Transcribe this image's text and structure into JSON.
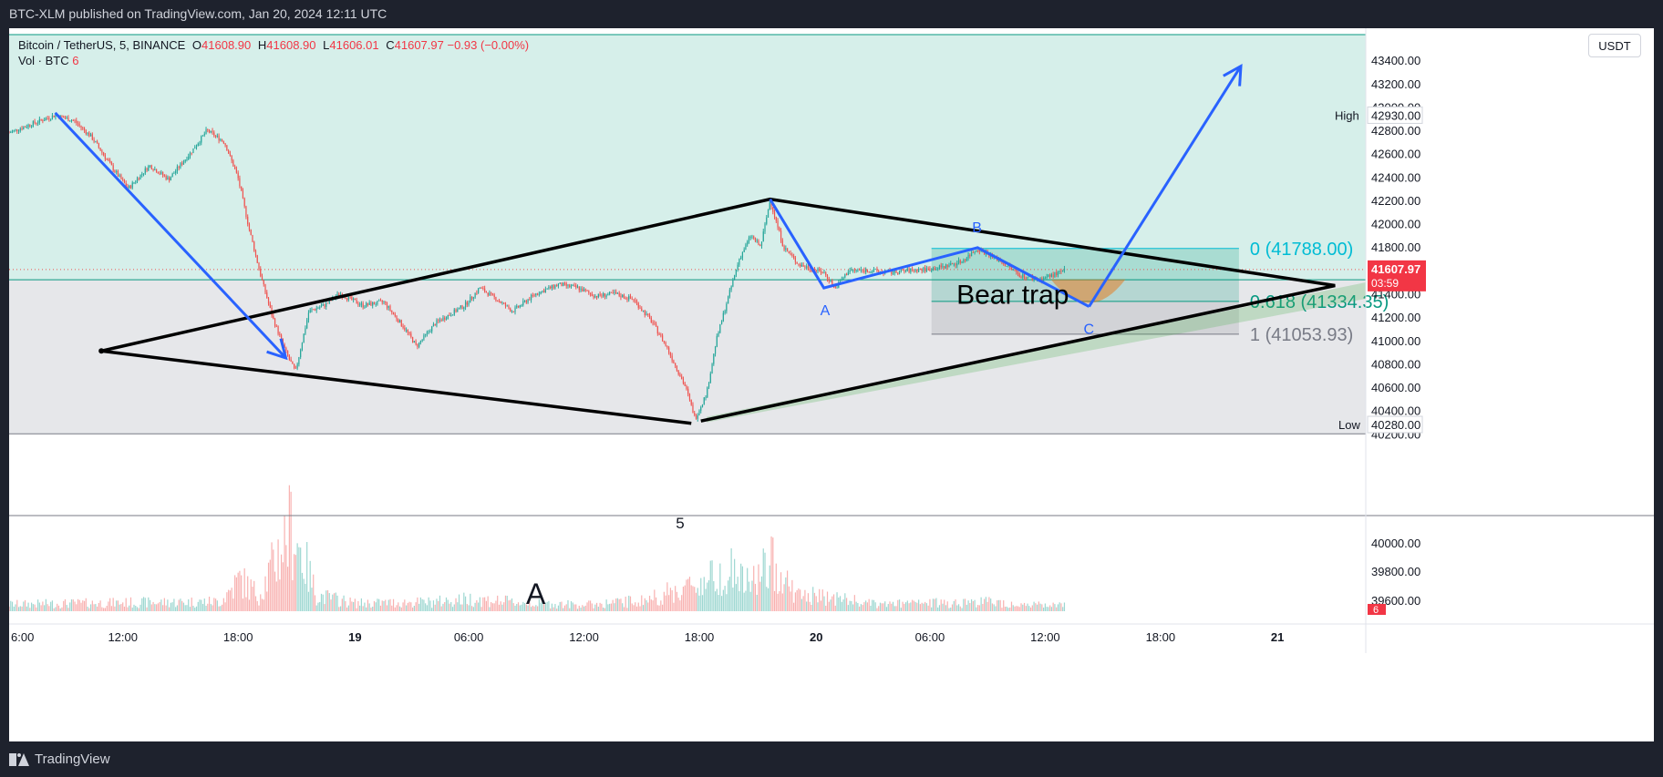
{
  "header": {
    "text": "BTC-XLM published on TradingView.com, Jan 20, 2024 12:11 UTC"
  },
  "legend": {
    "symbol": "Bitcoin / TetherUS, 5, BINANCE",
    "o_label": "O",
    "o": "41608.90",
    "h_label": "H",
    "h": "41608.90",
    "l_label": "L",
    "l": "41606.01",
    "c_label": "C",
    "c": "41607.97",
    "change": "−0.93 (−0.00%)",
    "vol_label": "Vol · BTC",
    "vol": "6"
  },
  "currency": "USDT",
  "footer": {
    "brand": "TradingView"
  },
  "colors": {
    "up": "#26a69a",
    "down": "#ef5350",
    "upper_zone": "#d6efea",
    "lower_zone": "#e6e7ea",
    "pattern": "#000000",
    "arrow": "#2962ff",
    "fib_zero": "#00bcd4",
    "fib_618": "#089981",
    "fib_one": "#787b86",
    "price_tag": "#f23645"
  },
  "chart_data": {
    "type": "candlestick",
    "title": "Bitcoin / TetherUS, 5, BINANCE",
    "interval": "5",
    "ylim": [
      39500,
      43620
    ],
    "volume_ylim": [
      0,
      18
    ],
    "y_ticks": [
      43400,
      43200,
      43000,
      42800,
      42600,
      42400,
      42200,
      42000,
      41800,
      41400,
      41200,
      41000,
      40800,
      40600,
      40400,
      40200,
      40000,
      39800
    ],
    "x_tick_labels": [
      "6:00",
      "12:00",
      "18:00",
      "19",
      "06:00",
      "12:00",
      "18:00",
      "20",
      "06:00",
      "12:00",
      "18:00",
      "21"
    ],
    "x_ticks_hours": [
      6,
      12,
      18,
      24,
      30,
      36,
      42,
      48,
      54,
      60,
      66,
      72
    ],
    "xlim_hours": [
      6,
      76.6
    ],
    "last_price": "41607.97",
    "countdown": "03:59",
    "high": {
      "label": "High",
      "value": "42930.00"
    },
    "low": {
      "label": "Low",
      "value": "40280.00"
    },
    "volume_last": "6",
    "volume_axis_label": "39600.00",
    "path_points": [
      [
        6.0,
        42780
      ],
      [
        7.1,
        42850
      ],
      [
        8.4,
        42930
      ],
      [
        9.4,
        42880
      ],
      [
        10.3,
        42740
      ],
      [
        11.5,
        42450
      ],
      [
        12.2,
        42300
      ],
      [
        13.3,
        42500
      ],
      [
        14.3,
        42380
      ],
      [
        15.5,
        42620
      ],
      [
        16.3,
        42800
      ],
      [
        17.2,
        42700
      ],
      [
        17.9,
        42400
      ],
      [
        18.5,
        41950
      ],
      [
        19.1,
        41550
      ],
      [
        19.7,
        41200
      ],
      [
        20.4,
        40900
      ],
      [
        20.9,
        40730
      ],
      [
        21.6,
        41250
      ],
      [
        22.4,
        41300
      ],
      [
        23.2,
        41400
      ],
      [
        24.4,
        41300
      ],
      [
        25.5,
        41330
      ],
      [
        26.6,
        41100
      ],
      [
        27.2,
        40950
      ],
      [
        28.2,
        41150
      ],
      [
        29.7,
        41300
      ],
      [
        30.5,
        41450
      ],
      [
        31.4,
        41350
      ],
      [
        32.2,
        41250
      ],
      [
        33.4,
        41400
      ],
      [
        34.6,
        41480
      ],
      [
        35.6,
        41450
      ],
      [
        36.5,
        41380
      ],
      [
        37.5,
        41400
      ],
      [
        38.5,
        41350
      ],
      [
        39.5,
        41150
      ],
      [
        40.2,
        40950
      ],
      [
        41.2,
        40600
      ],
      [
        41.7,
        40330
      ],
      [
        42.3,
        40550
      ],
      [
        42.8,
        41000
      ],
      [
        43.3,
        41300
      ],
      [
        44.0,
        41700
      ],
      [
        44.6,
        41900
      ],
      [
        45.1,
        41800
      ],
      [
        45.6,
        42200
      ],
      [
        46.3,
        41800
      ],
      [
        47.1,
        41650
      ],
      [
        48.4,
        41580
      ],
      [
        49.0,
        41450
      ],
      [
        49.7,
        41600
      ],
      [
        50.8,
        41600
      ],
      [
        51.8,
        41580
      ],
      [
        52.8,
        41600
      ],
      [
        53.8,
        41610
      ],
      [
        54.6,
        41630
      ],
      [
        55.6,
        41680
      ],
      [
        56.4,
        41790
      ],
      [
        57.6,
        41680
      ],
      [
        58.6,
        41560
      ],
      [
        59.6,
        41520
      ],
      [
        60.3,
        41560
      ],
      [
        61.0,
        41600
      ]
    ],
    "volume_profile": [
      [
        6,
        1.3
      ],
      [
        12,
        1.6
      ],
      [
        17,
        1.8
      ],
      [
        18,
        6
      ],
      [
        19,
        3
      ],
      [
        20.7,
        16
      ],
      [
        22,
        3
      ],
      [
        24,
        1.5
      ],
      [
        28,
        1.7
      ],
      [
        30,
        2.3
      ],
      [
        33,
        1.5
      ],
      [
        36,
        1.2
      ],
      [
        39,
        2
      ],
      [
        41.8,
        5
      ],
      [
        43.5,
        8
      ],
      [
        44.4,
        5
      ],
      [
        45.8,
        9
      ],
      [
        47,
        3
      ],
      [
        49,
        2.5
      ],
      [
        51,
        1.3
      ],
      [
        55,
        1.6
      ],
      [
        57,
        1.8
      ],
      [
        59,
        1.2
      ],
      [
        61,
        1.0
      ]
    ],
    "annotations": {
      "bear_trap": "Bear trap",
      "label_five": "5",
      "label_A_big": "A",
      "point_A": "A",
      "point_B": "B",
      "point_C": "C"
    },
    "fibonacci": [
      {
        "label": "0 (41788.00)",
        "value": 41788.0
      },
      {
        "label": "0.618 (41334.35)",
        "value": 41334.35
      },
      {
        "label": "1 (41053.93)",
        "value": 41053.93
      }
    ],
    "zones": {
      "upper_from": 41520,
      "upper_to": 43620,
      "lower_from": 40200,
      "lower_to": 41520
    },
    "triangle": {
      "left_apex": [
        10.8,
        40910
      ],
      "top": [
        45.6,
        42210
      ],
      "right_apex": [
        75.0,
        41470
      ],
      "bottom": [
        41.5,
        40290
      ],
      "bottom_right": [
        42.0,
        40310
      ]
    },
    "abc_pattern": [
      [
        45.6,
        42210
      ],
      [
        48.4,
        41450
      ],
      [
        56.4,
        41795
      ],
      [
        62.2,
        41290
      ]
    ],
    "down_arrow": [
      [
        8.4,
        42950
      ],
      [
        20.4,
        40850
      ]
    ],
    "up_arrow": [
      [
        62.2,
        41290
      ],
      [
        70.1,
        43350
      ]
    ],
    "fib_box": {
      "x0_hours": 54.0,
      "x1_hours": 70.0
    },
    "trend_channel": {
      "from": [
        42.3,
        40330
      ],
      "to": [
        76.6,
        41420
      ]
    }
  }
}
